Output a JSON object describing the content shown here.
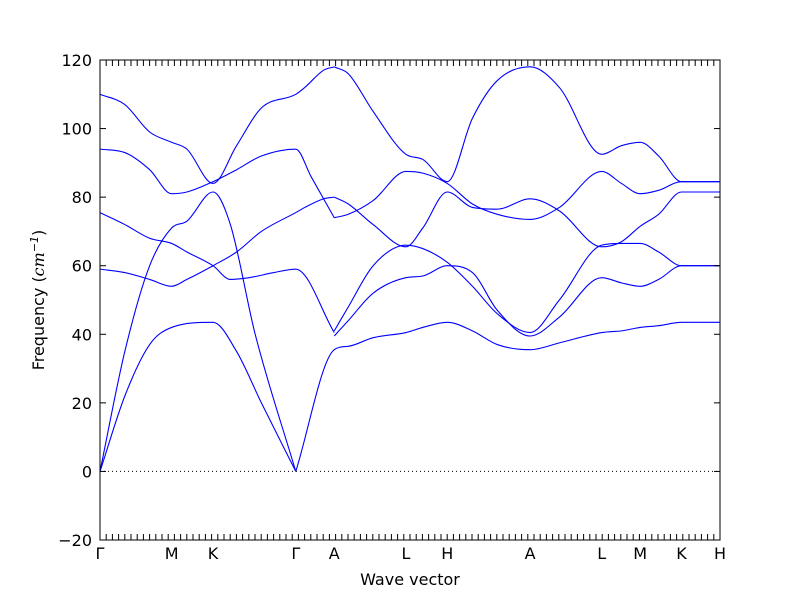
{
  "chart_data": {
    "type": "line",
    "xlabel": "Wave vector",
    "ylabel_main": "Frequency (",
    "ylabel_unit": "cm",
    "ylabel_exp": "−1",
    "ylabel_close": ")",
    "ylim": [
      -20,
      120
    ],
    "yticks": [
      -20,
      0,
      20,
      40,
      60,
      80,
      100,
      120
    ],
    "grid": false,
    "colors": {
      "band": "#0000ff",
      "zero_line": "#000000"
    },
    "high_symmetry_points": [
      {
        "label": "Γ",
        "x": 0.0
      },
      {
        "label": "M",
        "x": 0.577
      },
      {
        "label": "K",
        "x": 0.91
      },
      {
        "label": "Γ",
        "x": 1.577
      },
      {
        "label": "A",
        "x": 1.887
      },
      {
        "label": "L",
        "x": 2.464
      },
      {
        "label": "H",
        "x": 2.797
      },
      {
        "label": "A",
        "x": 3.464
      },
      {
        "label": "L",
        "x": 4.041
      },
      {
        "label": "M",
        "x": 4.351
      },
      {
        "label": "K",
        "x": 4.684
      },
      {
        "label": "H",
        "x": 4.994
      }
    ],
    "series": [
      {
        "points": [
          [
            0.0,
            0
          ],
          [
            0.2,
            22
          ],
          [
            0.4,
            37
          ],
          [
            0.577,
            42
          ],
          [
            0.91,
            43.5
          ],
          [
            1.1,
            35
          ],
          [
            1.3,
            20
          ],
          [
            1.577,
            0
          ]
        ]
      },
      {
        "points": [
          [
            0.0,
            0
          ],
          [
            0.2,
            35
          ],
          [
            0.4,
            60
          ],
          [
            0.577,
            71
          ],
          [
            0.7,
            73
          ],
          [
            0.91,
            81.5
          ],
          [
            1.05,
            72
          ],
          [
            1.25,
            40
          ],
          [
            1.577,
            0
          ]
        ]
      },
      {
        "points": [
          [
            0.0,
            59
          ],
          [
            0.2,
            58
          ],
          [
            0.4,
            56
          ],
          [
            0.577,
            54
          ],
          [
            0.7,
            56
          ],
          [
            0.91,
            60
          ],
          [
            1.1,
            64
          ],
          [
            1.3,
            70
          ],
          [
            1.577,
            75.5
          ],
          [
            1.65,
            77
          ],
          [
            1.8,
            79.5
          ],
          [
            1.887,
            80
          ]
        ]
      },
      {
        "points": [
          [
            0.0,
            75.5
          ],
          [
            0.2,
            72
          ],
          [
            0.4,
            68
          ],
          [
            0.577,
            66.5
          ],
          [
            0.7,
            64
          ],
          [
            0.91,
            60
          ],
          [
            1.05,
            56
          ],
          [
            1.2,
            56.5
          ],
          [
            1.4,
            58
          ],
          [
            1.577,
            59
          ],
          [
            1.887,
            40.5
          ]
        ]
      },
      {
        "points": [
          [
            0.0,
            94
          ],
          [
            0.2,
            93
          ],
          [
            0.4,
            88
          ],
          [
            0.577,
            81
          ],
          [
            0.7,
            81.5
          ],
          [
            0.91,
            84.5
          ],
          [
            1.1,
            88
          ],
          [
            1.3,
            92
          ],
          [
            1.577,
            94
          ],
          [
            1.7,
            86
          ],
          [
            1.887,
            74
          ]
        ]
      },
      {
        "points": [
          [
            0.0,
            110
          ],
          [
            0.2,
            107
          ],
          [
            0.4,
            99
          ],
          [
            0.577,
            96
          ],
          [
            0.7,
            94
          ],
          [
            0.91,
            84
          ],
          [
            1.1,
            95
          ],
          [
            1.3,
            106
          ],
          [
            1.577,
            110
          ],
          [
            1.65,
            112
          ],
          [
            1.8,
            117
          ],
          [
            1.887,
            118
          ]
        ]
      },
      {
        "points": [
          [
            1.577,
            0
          ],
          [
            1.887,
            35.5
          ],
          [
            2.0,
            36.5
          ],
          [
            2.2,
            39
          ],
          [
            2.464,
            40.5
          ],
          [
            2.6,
            42
          ],
          [
            2.797,
            43.5
          ],
          [
            3.0,
            41
          ],
          [
            3.2,
            37
          ],
          [
            3.464,
            35.5
          ],
          [
            3.7,
            37.5
          ],
          [
            4.041,
            40.5
          ],
          [
            4.2,
            41
          ],
          [
            4.351,
            42
          ],
          [
            4.5,
            42.5
          ],
          [
            4.684,
            43.5
          ],
          [
            4.994,
            43.5
          ]
        ]
      },
      {
        "points": [
          [
            1.887,
            39.5
          ],
          [
            2.0,
            44
          ],
          [
            2.2,
            52
          ],
          [
            2.464,
            56.5
          ],
          [
            2.6,
            57
          ],
          [
            2.797,
            60
          ],
          [
            3.0,
            58
          ],
          [
            3.2,
            47
          ],
          [
            3.464,
            39.5
          ],
          [
            3.7,
            45
          ],
          [
            4.041,
            56.5
          ],
          [
            4.2,
            55
          ],
          [
            4.351,
            54
          ],
          [
            4.5,
            56
          ],
          [
            4.684,
            60
          ],
          [
            4.994,
            60
          ]
        ]
      },
      {
        "points": [
          [
            1.887,
            41
          ],
          [
            2.0,
            48
          ],
          [
            2.2,
            60
          ],
          [
            2.464,
            66
          ],
          [
            2.6,
            65
          ],
          [
            2.797,
            61
          ],
          [
            3.0,
            54
          ],
          [
            3.2,
            46
          ],
          [
            3.464,
            40.5
          ],
          [
            3.7,
            50
          ],
          [
            4.041,
            66
          ],
          [
            4.2,
            66.5
          ],
          [
            4.351,
            66.5
          ],
          [
            4.5,
            64
          ],
          [
            4.684,
            60
          ],
          [
            4.994,
            60
          ]
        ]
      },
      {
        "points": [
          [
            1.887,
            80
          ],
          [
            2.0,
            78
          ],
          [
            2.2,
            72
          ],
          [
            2.464,
            65.5
          ],
          [
            2.6,
            71
          ],
          [
            2.797,
            81.5
          ],
          [
            3.0,
            77
          ],
          [
            3.2,
            76.5
          ],
          [
            3.464,
            79.5
          ],
          [
            3.7,
            76
          ],
          [
            4.041,
            65.5
          ],
          [
            4.2,
            67
          ],
          [
            4.351,
            71.5
          ],
          [
            4.5,
            75
          ],
          [
            4.684,
            81.5
          ],
          [
            4.994,
            81.5
          ]
        ]
      },
      {
        "points": [
          [
            1.887,
            74
          ],
          [
            2.0,
            75
          ],
          [
            2.2,
            79
          ],
          [
            2.464,
            87.5
          ],
          [
            2.6,
            87
          ],
          [
            2.797,
            84
          ],
          [
            3.0,
            78
          ],
          [
            3.2,
            75
          ],
          [
            3.464,
            73.5
          ],
          [
            3.7,
            77
          ],
          [
            4.041,
            87.5
          ],
          [
            4.2,
            84
          ],
          [
            4.351,
            81
          ],
          [
            4.5,
            82
          ],
          [
            4.684,
            84.5
          ],
          [
            4.994,
            84.5
          ]
        ]
      },
      {
        "points": [
          [
            1.887,
            118
          ],
          [
            2.0,
            116
          ],
          [
            2.2,
            105
          ],
          [
            2.464,
            92.5
          ],
          [
            2.6,
            91
          ],
          [
            2.797,
            84.5
          ],
          [
            3.0,
            103
          ],
          [
            3.2,
            114
          ],
          [
            3.464,
            118
          ],
          [
            3.7,
            112
          ],
          [
            4.041,
            92.5
          ],
          [
            4.2,
            95
          ],
          [
            4.351,
            96
          ],
          [
            4.5,
            92
          ],
          [
            4.684,
            84.5
          ],
          [
            4.994,
            84.5
          ]
        ]
      }
    ]
  }
}
